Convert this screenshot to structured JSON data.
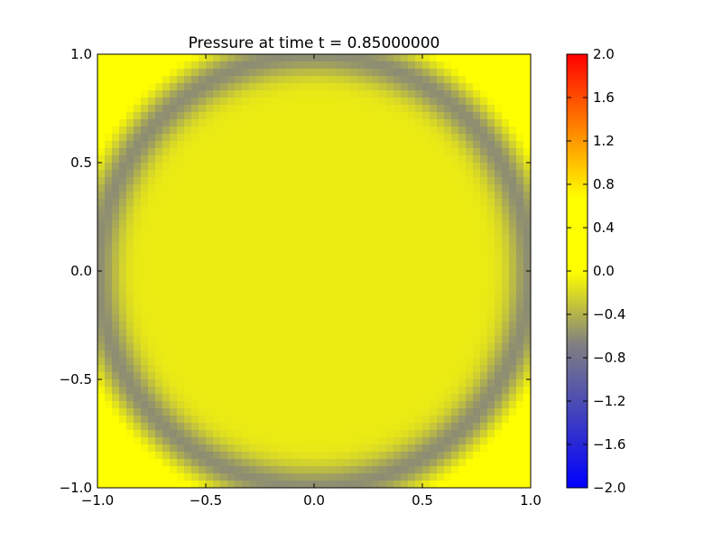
{
  "chart_data": {
    "type": "heatmap",
    "title": "Pressure at time t =     0.85000000",
    "xlabel": "",
    "ylabel": "",
    "xlim": [
      -1.0,
      1.0
    ],
    "ylim": [
      -1.0,
      1.0
    ],
    "x_ticks": [
      "−1.0",
      "−0.5",
      "0.0",
      "0.5",
      "1.0"
    ],
    "y_ticks": [
      "1.0",
      "0.5",
      "0.0",
      "−0.5",
      "−1.0"
    ],
    "grid": false,
    "field": {
      "description": "Approximately axially symmetric pressure field: ~-0.1 near center, ring of ~-0.6 at radius ~1.0, rising to ~0.4 in the corners",
      "center_value": -0.1,
      "ring_radius": 1.0,
      "ring_value": -0.6,
      "corner_value": 0.4,
      "grid_n": 60
    },
    "colorbar": {
      "vmin": -2.0,
      "vmax": 2.0,
      "ticks": [
        "2.0",
        "1.6",
        "1.2",
        "0.8",
        "0.4",
        "0.0",
        "−0.4",
        "−0.8",
        "−1.2",
        "−1.6",
        "−2.0"
      ],
      "colors": [
        "#0000ff",
        "#808080",
        "#ffff00",
        "#ff0000"
      ]
    }
  }
}
